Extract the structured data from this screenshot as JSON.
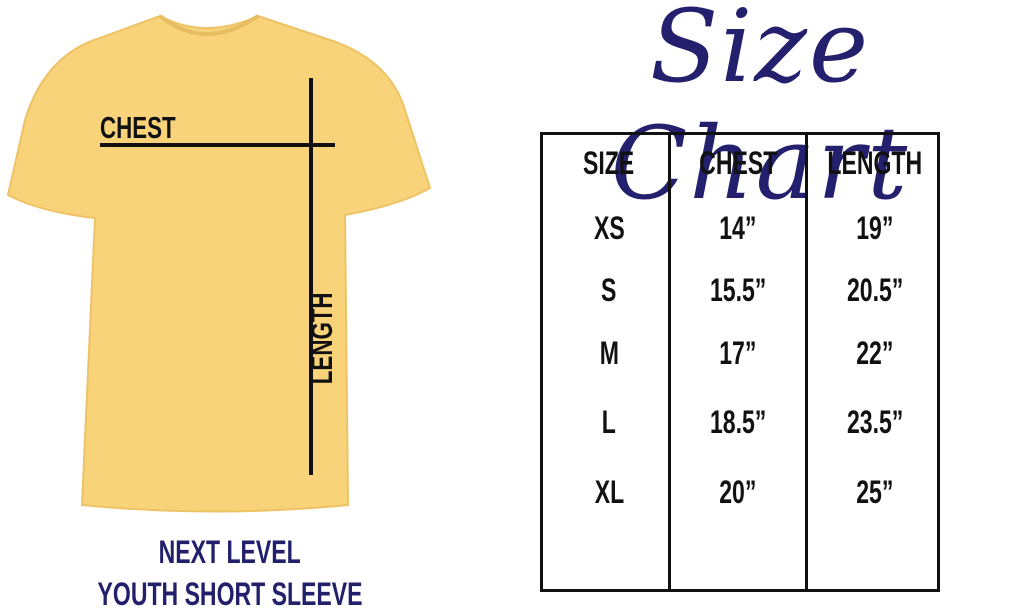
{
  "title": "Size Chart",
  "shirt": {
    "color": "#f8d37a",
    "chest_label": "CHEST",
    "length_label": "LENGTH"
  },
  "caption": {
    "line1": "NEXT LEVEL",
    "line2": "YOUTH SHORT SLEEVE",
    "color": "#23206b"
  },
  "table": {
    "headers": [
      "SIZE",
      "CHEST",
      "LENGTH"
    ],
    "rows": [
      [
        "XS",
        "14”",
        "19”"
      ],
      [
        "S",
        "15.5”",
        "20.5”"
      ],
      [
        "M",
        "17”",
        "22”"
      ],
      [
        "L",
        "18.5”",
        "23.5”"
      ],
      [
        "XL",
        "20”",
        "25”"
      ]
    ]
  }
}
